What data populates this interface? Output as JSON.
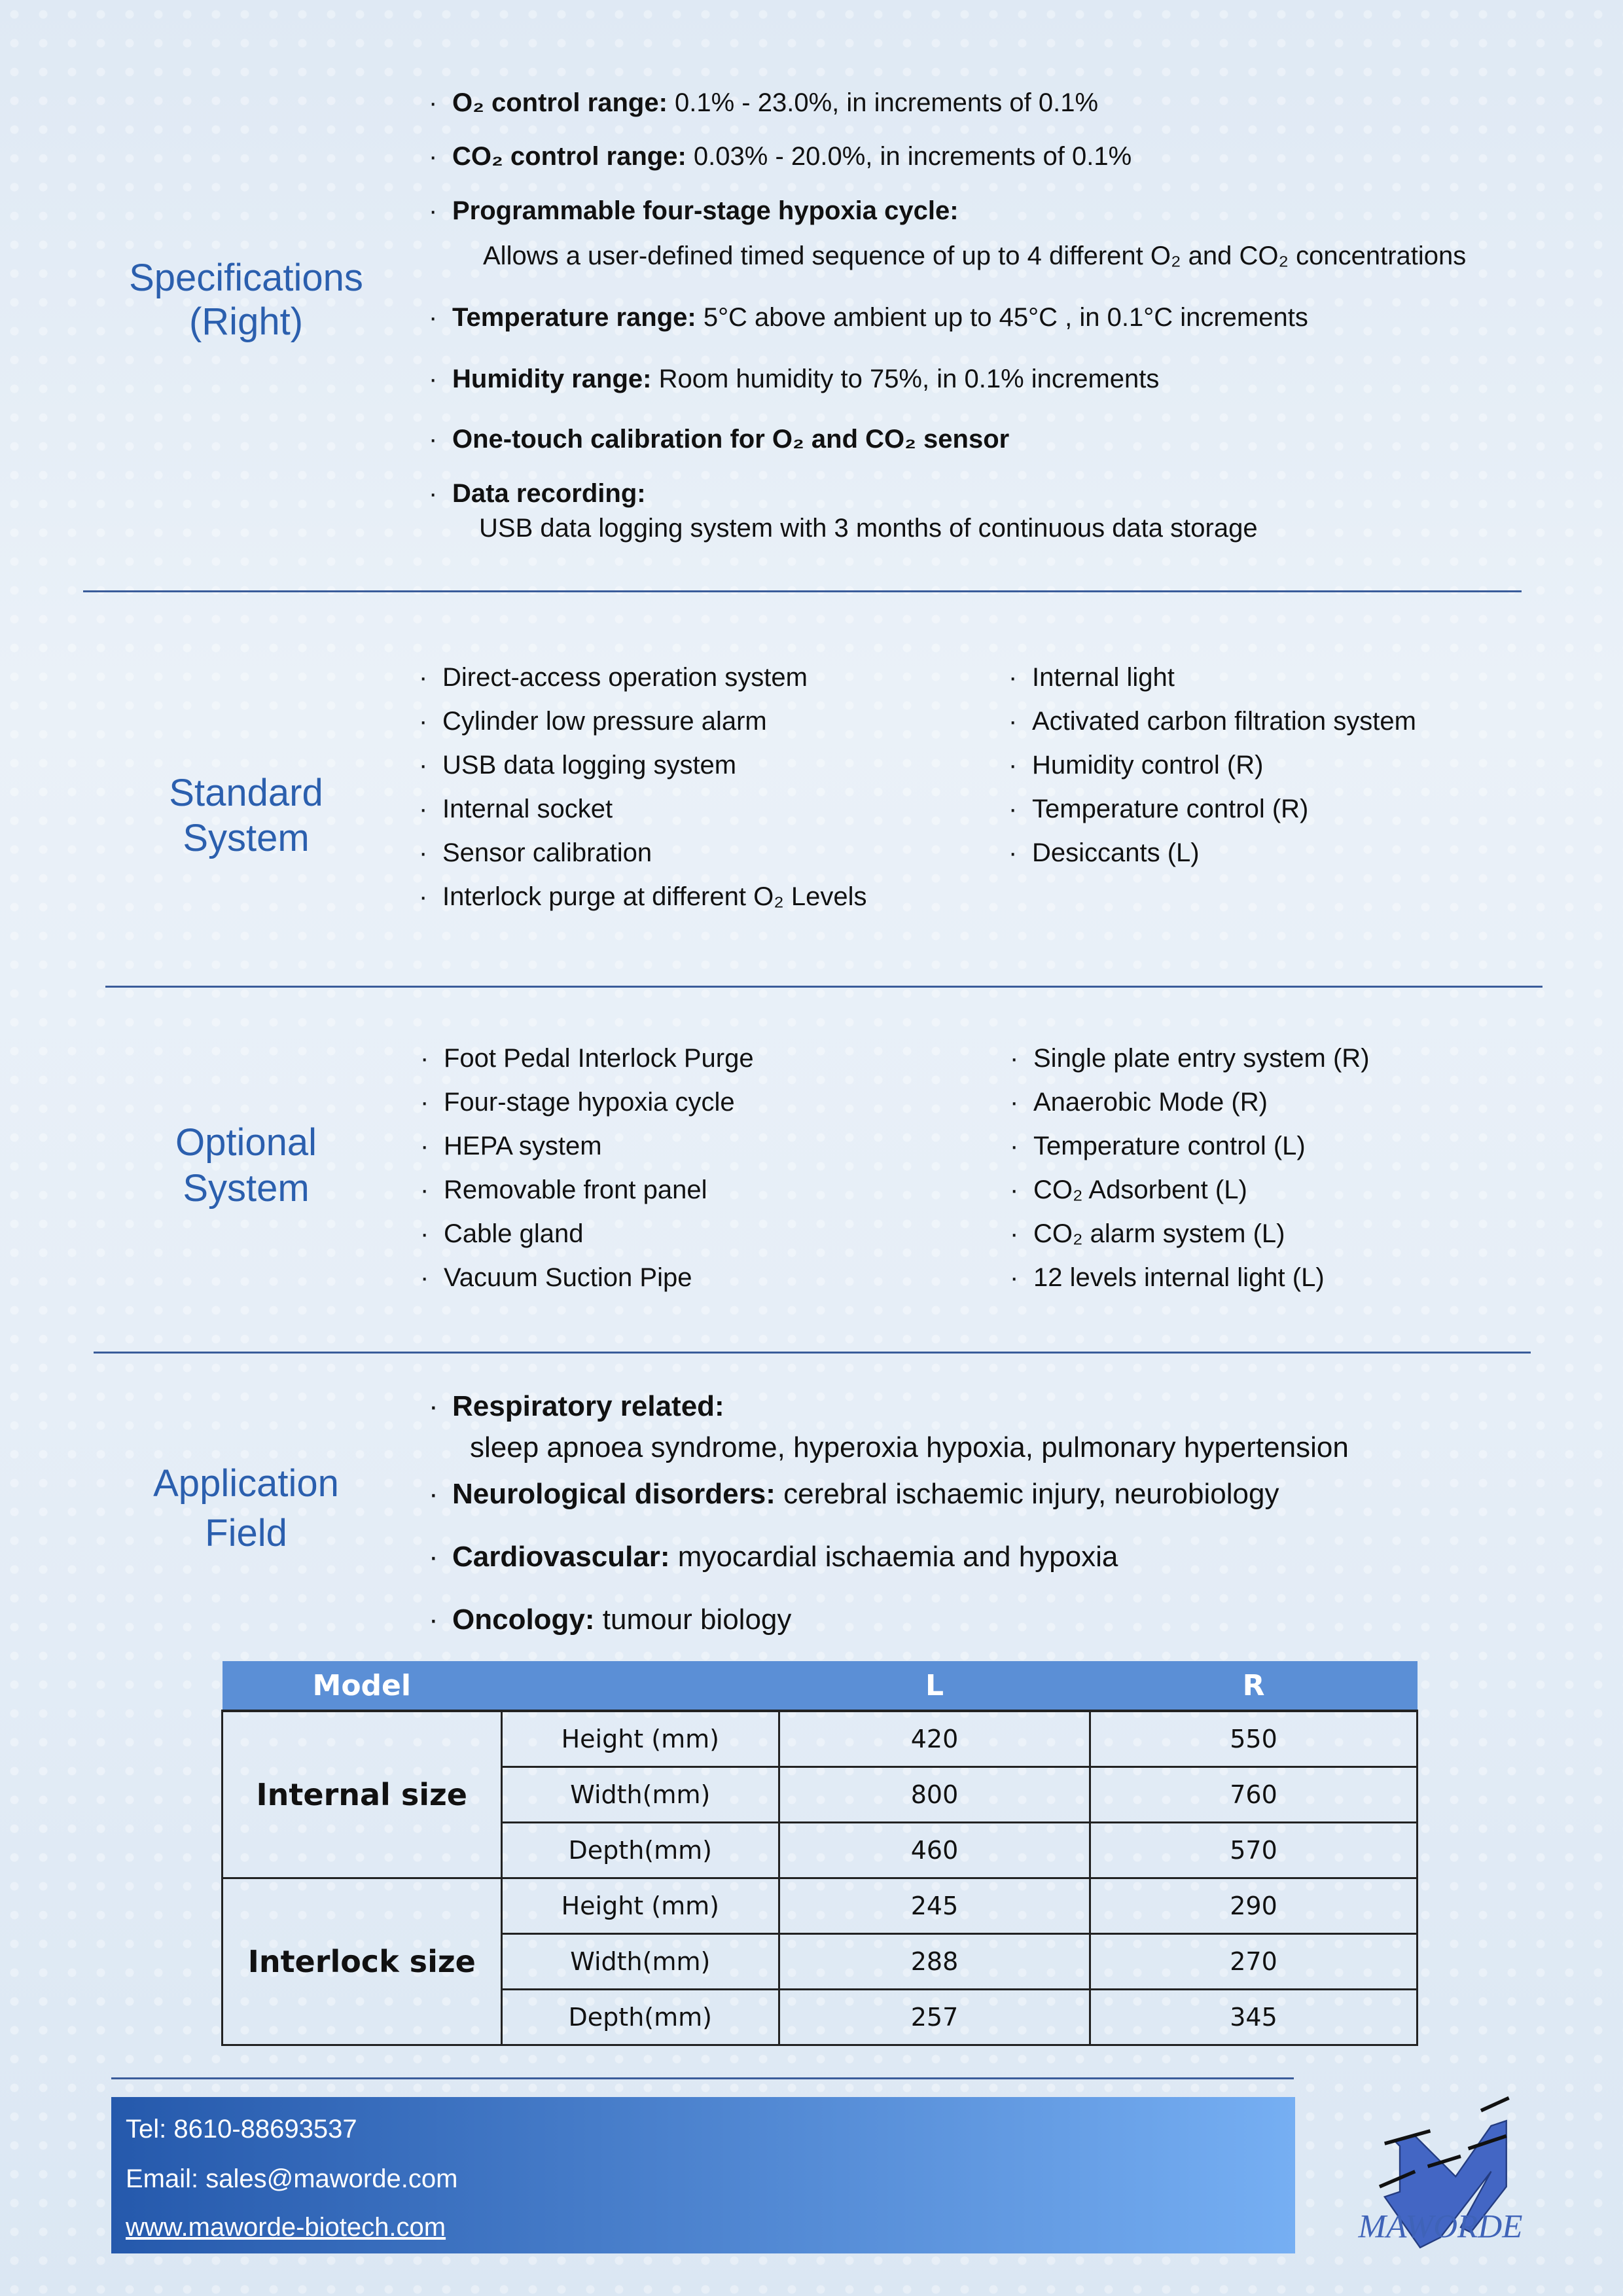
{
  "specifications": {
    "label_1": "Specifications",
    "label_2": "(Right)",
    "items": [
      {
        "bold": "O₂ control range:",
        "text": " 0.1% - 23.0%, in increments of 0.1%"
      },
      {
        "bold": "CO₂ control range:",
        "text": " 0.03% - 20.0%, in increments of  0.1%"
      },
      {
        "bold": "Programmable four-stage hypoxia cycle:",
        "text": "",
        "sub": "Allows a user-defined timed sequence of up to 4 different O₂ and CO₂ concentrations"
      },
      {
        "bold": "Temperature range:",
        "text": "  5°C above ambient up to 45°C , in 0.1°C increments"
      },
      {
        "bold": "Humidity range:",
        "text": " Room humidity to 75%, in 0.1% increments"
      },
      {
        "bold": "One-touch calibration for O₂ and CO₂ sensor",
        "text": ""
      },
      {
        "bold": "Data recording:",
        "text": "",
        "sub": "USB data logging system with 3 months of continuous data storage"
      }
    ]
  },
  "standard": {
    "label_1": "Standard",
    "label_2": "System",
    "left": [
      "Direct-access operation system",
      "Cylinder low pressure alarm",
      "USB data logging system",
      "Internal socket",
      "Sensor calibration",
      "Interlock purge at different O₂ Levels"
    ],
    "right": [
      "Internal light",
      "Activated carbon filtration system",
      "Humidity control (R)",
      "Temperature control (R)",
      "Desiccants (L)"
    ]
  },
  "optional": {
    "label_1": "Optional",
    "label_2": "System",
    "left": [
      "Foot Pedal Interlock Purge",
      "Four-stage hypoxia cycle",
      "HEPA system",
      "Removable front panel",
      "Cable gland",
      "Vacuum Suction Pipe"
    ],
    "right": [
      "Single plate entry system (R)",
      "Anaerobic Mode (R)",
      "Temperature control (L)",
      "CO₂ Adsorbent (L)",
      "CO₂ alarm system (L)",
      "12 levels internal light (L)"
    ]
  },
  "application": {
    "label_1": "Application",
    "label_2": "Field",
    "items": [
      {
        "bold": "Respiratory related:",
        "text": "",
        "sub": "sleep apnoea syndrome, hyperoxia hypoxia, pulmonary hypertension"
      },
      {
        "bold": "Neurological disorders:",
        "text": " cerebral ischaemic injury, neurobiology"
      },
      {
        "bold": "Cardiovascular:",
        "text": " myocardial ischaemia and hypoxia"
      },
      {
        "bold": "Oncology:",
        "text": " tumour biology"
      }
    ]
  },
  "table": {
    "headers": [
      "Model",
      "",
      "L",
      "R"
    ],
    "groups": [
      {
        "name": "Internal size",
        "rows": [
          [
            "Height (mm)",
            "420",
            "550"
          ],
          [
            "Width(mm)",
            "800",
            "760"
          ],
          [
            "Depth(mm)",
            "460",
            "570"
          ]
        ]
      },
      {
        "name": "Interlock size",
        "rows": [
          [
            "Height (mm)",
            "245",
            "290"
          ],
          [
            "Width(mm)",
            "288",
            "270"
          ],
          [
            "Depth(mm)",
            "257",
            "345"
          ]
        ]
      }
    ]
  },
  "footer": {
    "tel": "Tel: 8610-88693537",
    "email": "Email: sales@mawordе.com",
    "website": "www.maworde-biotech.com"
  },
  "logo": {
    "text": "MAWORDE",
    "color": "#3f63b8"
  },
  "colors": {
    "label": "#2b5fae",
    "table_header": "#5b8fd6"
  }
}
